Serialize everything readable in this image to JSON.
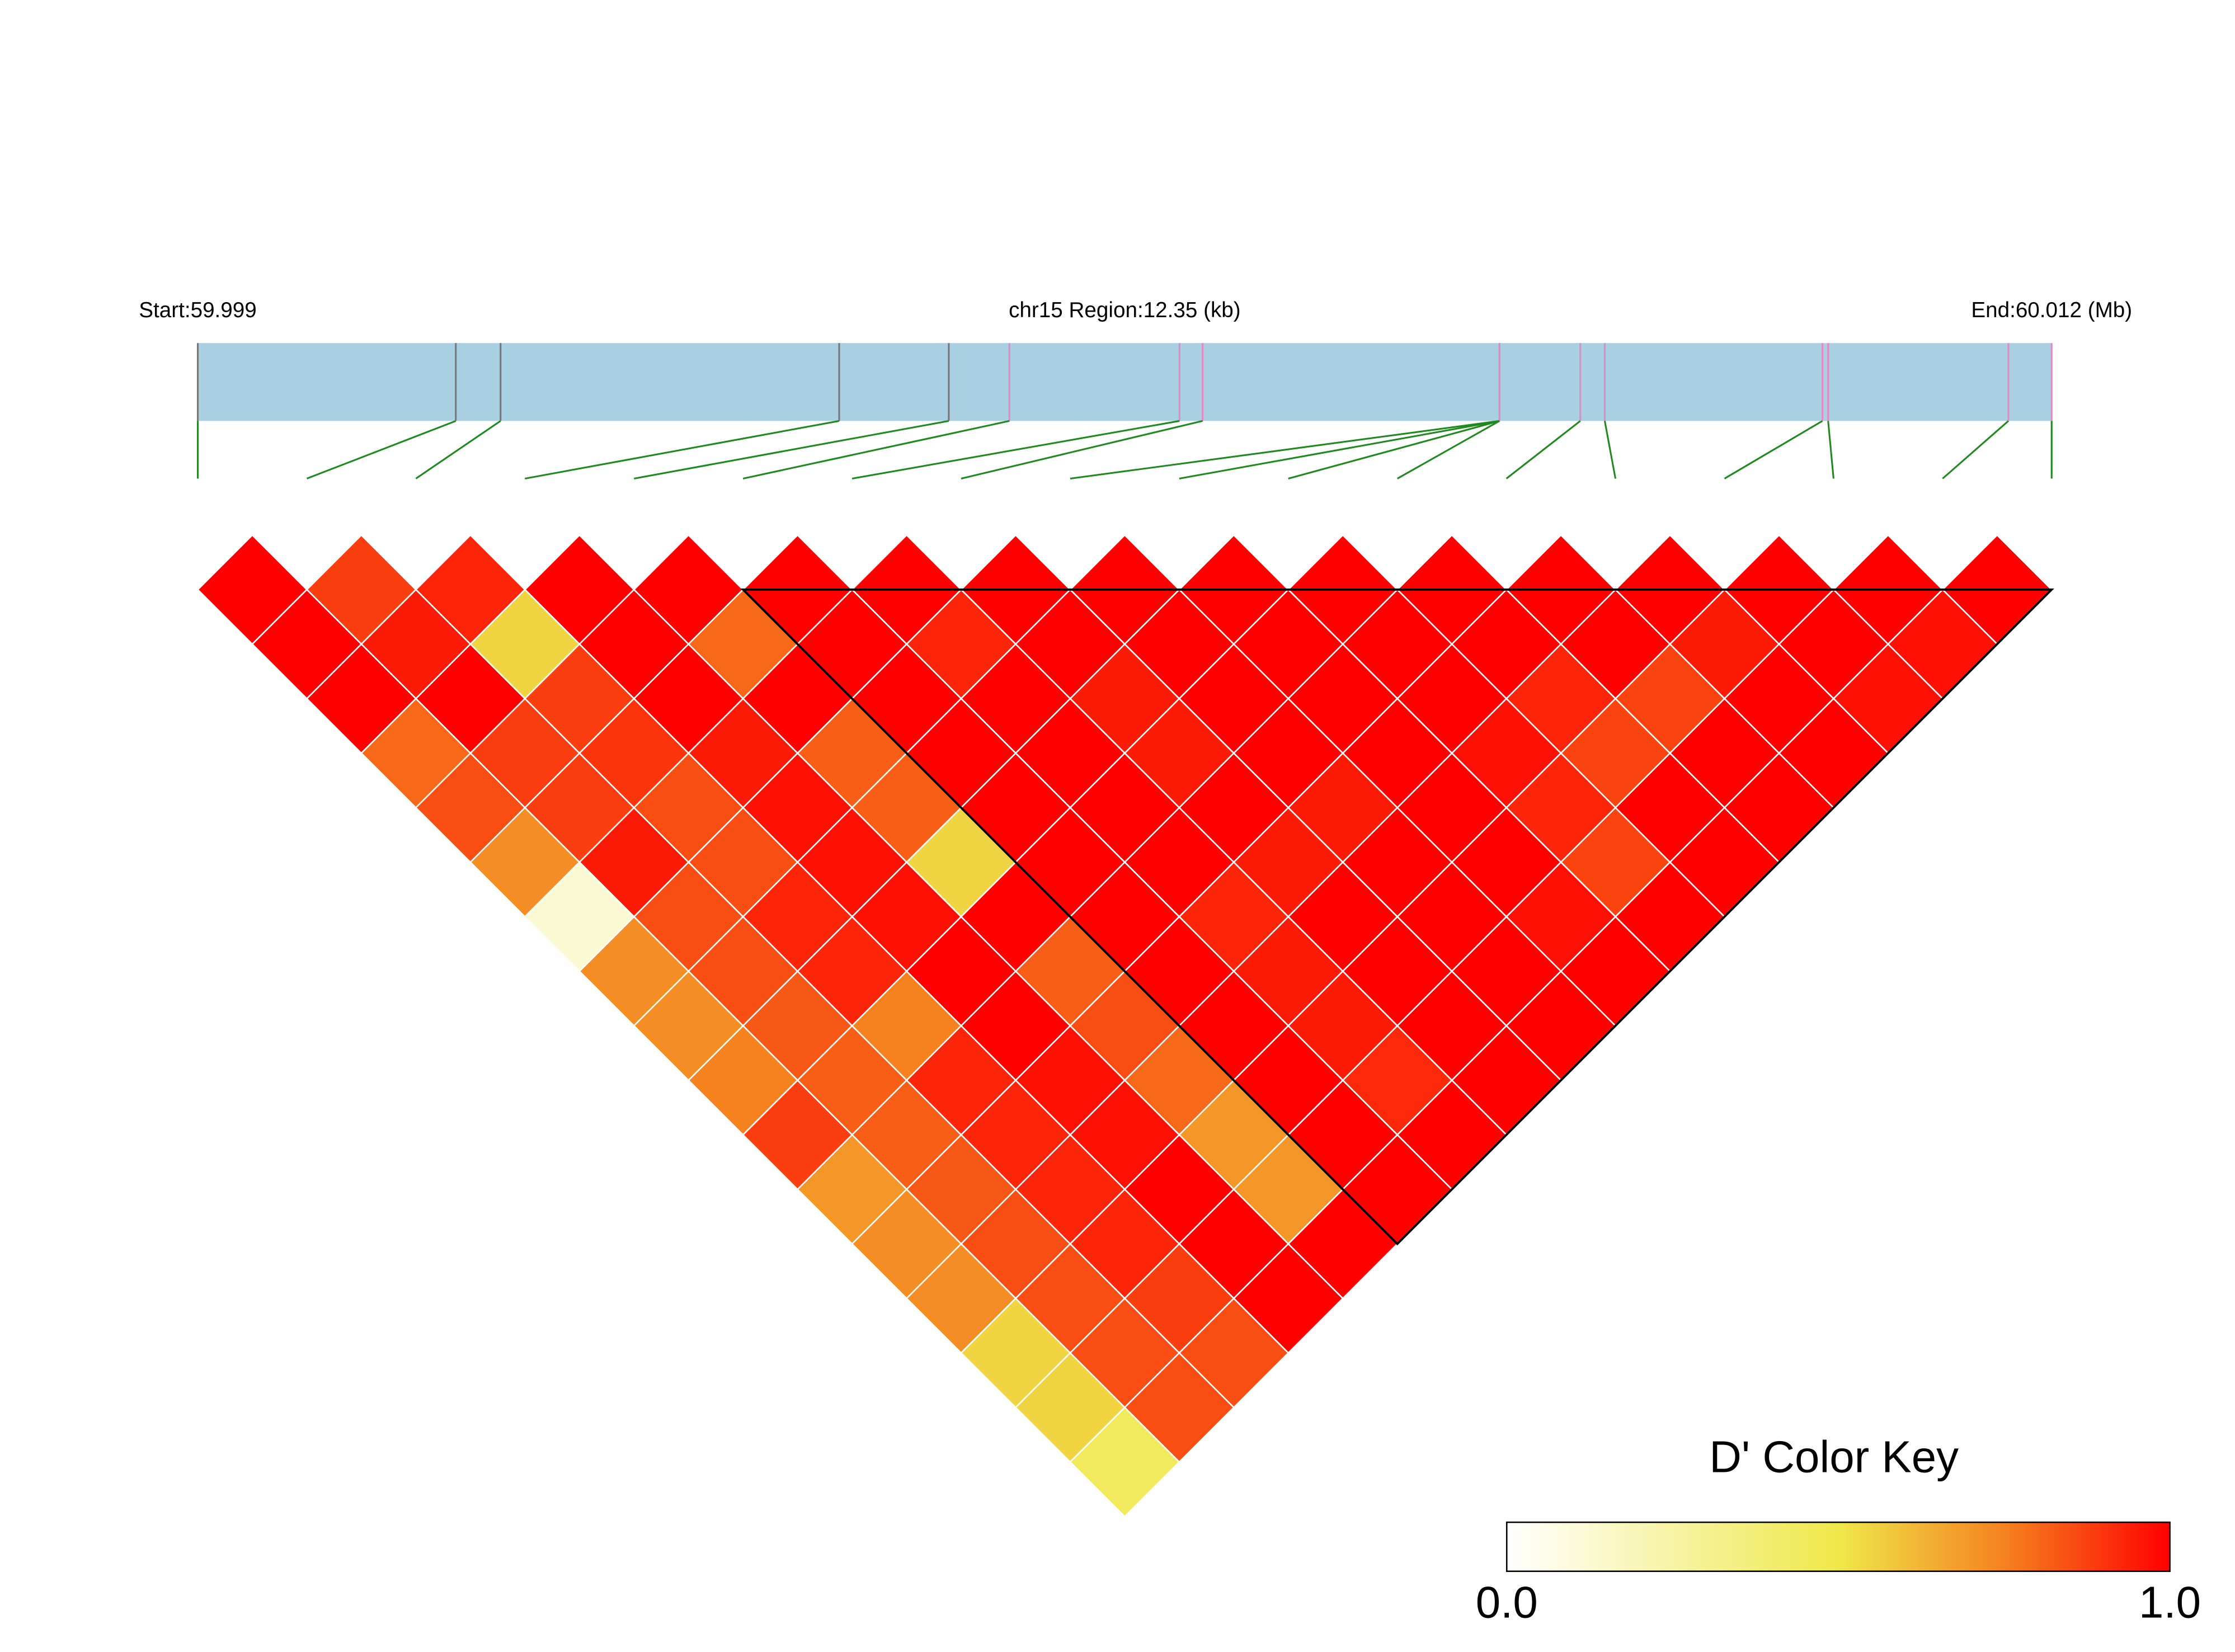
{
  "chart_data": {
    "type": "ld-heatmap",
    "start_label": "Start:59.999",
    "region_label": "chr15 Region:12.35 (kb)",
    "end_label": "End:60.012 (Mb)",
    "xlim": [
      0,
      12.35
    ],
    "snp_offsets_kb": [
      0,
      1.719,
      2.017,
      4.273,
      5.003,
      5.407,
      6.54,
      6.694,
      8.672,
      8.672,
      8.672,
      8.672,
      9.21,
      9.373,
      10.823,
      10.861,
      12.062,
      12.35
    ],
    "snp_line_colors": [
      "#777777",
      "#777777",
      "#777777",
      "#777777",
      "#777777",
      "#e38ac3",
      "#e38ac3",
      "#e38ac3",
      "#e38ac3",
      "#e38ac3",
      "#e38ac3",
      "#e38ac3",
      "#e38ac3",
      "#e38ac3",
      "#e38ac3",
      "#e38ac3",
      "#e38ac3",
      "#e38ac3"
    ],
    "track_color": "#a8cfe2",
    "connector_color": "#1f8a1f",
    "dprime_by_offset": [
      [
        1,
        0.88,
        0.93,
        1,
        1,
        1,
        1,
        1,
        1,
        1,
        1,
        1,
        1,
        1,
        1,
        1,
        1
      ],
      [
        1,
        0.95,
        0.55,
        1,
        0.8,
        1,
        0.93,
        1,
        1,
        1,
        1,
        1,
        1,
        0.95,
        1,
        0.97
      ],
      [
        1,
        1,
        0.88,
        1,
        1,
        1,
        1,
        0.95,
        1,
        1,
        1,
        0.93,
        0.87,
        1,
        0.97
      ],
      [
        0.8,
        0.88,
        0.9,
        0.95,
        0.82,
        1,
        1,
        0.95,
        1,
        1,
        0.97,
        0.87,
        1,
        1
      ],
      [
        0.85,
        0.88,
        0.85,
        0.97,
        0.82,
        1,
        1,
        1,
        0.95,
        1,
        0.93,
        1,
        1
      ],
      [
        0.72,
        0.95,
        0.85,
        0.97,
        0.55,
        1,
        1,
        0.95,
        1,
        1,
        0.87,
        1
      ],
      [
        0.12,
        0.85,
        0.93,
        0.97,
        1,
        1,
        0.93,
        1,
        1,
        0.97,
        1
      ],
      [
        0.72,
        0.85,
        0.93,
        1,
        0.82,
        1,
        0.95,
        1,
        1,
        1
      ],
      [
        0.72,
        0.83,
        0.75,
        1,
        0.85,
        1,
        0.95,
        1,
        1
      ],
      [
        0.75,
        0.82,
        0.93,
        0.97,
        0.8,
        1,
        0.92,
        1
      ],
      [
        0.88,
        0.82,
        0.93,
        0.97,
        0.7,
        1,
        1
      ],
      [
        0.7,
        0.83,
        0.93,
        1,
        0.7,
        1
      ],
      [
        0.72,
        0.85,
        0.93,
        1,
        1
      ],
      [
        0.72,
        0.85,
        0.88,
        1
      ],
      [
        0.55,
        0.85,
        0.85
      ],
      [
        0.55,
        0.85
      ],
      [
        0.45
      ]
    ],
    "blocks": [
      {
        "start": 5,
        "end": 17
      }
    ],
    "colorscale": [
      [
        0,
        "#ffffff"
      ],
      [
        0.5,
        "#efe84a"
      ],
      [
        0.75,
        "#f5821f"
      ],
      [
        1,
        "#ff0000"
      ]
    ],
    "color_key_title": "D' Color Key",
    "color_key_ticks": [
      {
        "value": 0,
        "label": "0.0"
      },
      {
        "value": 1,
        "label": "1.0"
      }
    ]
  }
}
